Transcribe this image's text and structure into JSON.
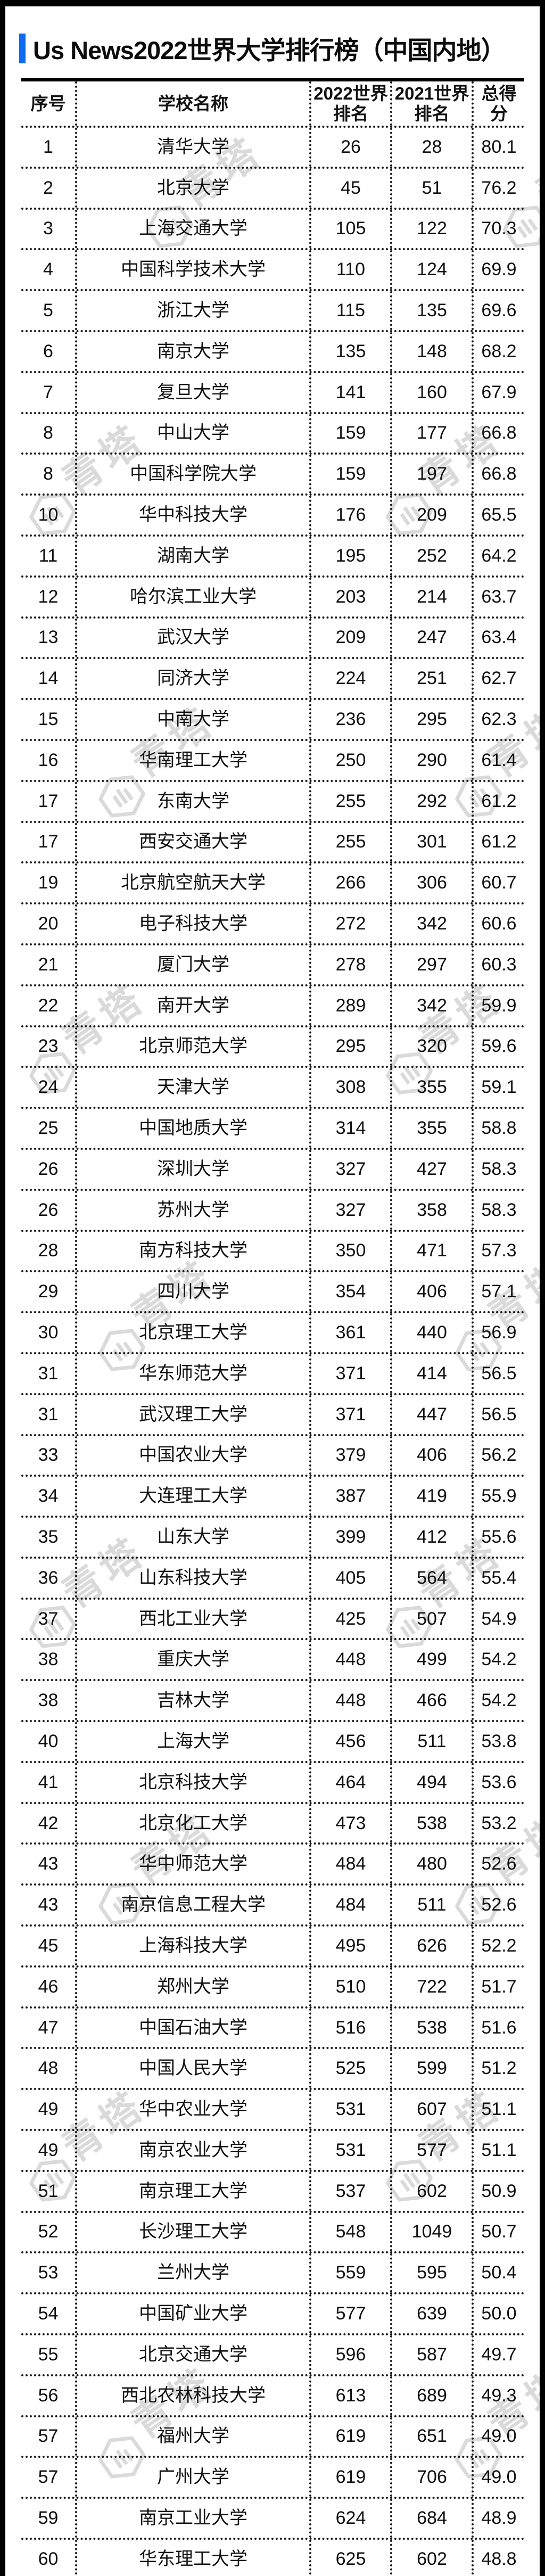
{
  "title": {
    "text": "Us News2022世界大学排行榜（中国内地）",
    "accent_color": "#0d6bf2"
  },
  "watermark": {
    "text": "青塔"
  },
  "table": {
    "columns": [
      "序号",
      "学校名称",
      "2022世界排名",
      "2021世界排名",
      "总得分"
    ],
    "rows": [
      [
        "1",
        "清华大学",
        "26",
        "28",
        "80.1"
      ],
      [
        "2",
        "北京大学",
        "45",
        "51",
        "76.2"
      ],
      [
        "3",
        "上海交通大学",
        "105",
        "122",
        "70.3"
      ],
      [
        "4",
        "中国科学技术大学",
        "110",
        "124",
        "69.9"
      ],
      [
        "5",
        "浙江大学",
        "115",
        "135",
        "69.6"
      ],
      [
        "6",
        "南京大学",
        "135",
        "148",
        "68.2"
      ],
      [
        "7",
        "复旦大学",
        "141",
        "160",
        "67.9"
      ],
      [
        "8",
        "中山大学",
        "159",
        "177",
        "66.8"
      ],
      [
        "8",
        "中国科学院大学",
        "159",
        "197",
        "66.8"
      ],
      [
        "10",
        "华中科技大学",
        "176",
        "209",
        "65.5"
      ],
      [
        "11",
        "湖南大学",
        "195",
        "252",
        "64.2"
      ],
      [
        "12",
        "哈尔滨工业大学",
        "203",
        "214",
        "63.7"
      ],
      [
        "13",
        "武汉大学",
        "209",
        "247",
        "63.4"
      ],
      [
        "14",
        "同济大学",
        "224",
        "251",
        "62.7"
      ],
      [
        "15",
        "中南大学",
        "236",
        "295",
        "62.3"
      ],
      [
        "16",
        "华南理工大学",
        "250",
        "290",
        "61.4"
      ],
      [
        "17",
        "东南大学",
        "255",
        "292",
        "61.2"
      ],
      [
        "17",
        "西安交通大学",
        "255",
        "301",
        "61.2"
      ],
      [
        "19",
        "北京航空航天大学",
        "266",
        "306",
        "60.7"
      ],
      [
        "20",
        "电子科技大学",
        "272",
        "342",
        "60.6"
      ],
      [
        "21",
        "厦门大学",
        "278",
        "297",
        "60.3"
      ],
      [
        "22",
        "南开大学",
        "289",
        "342",
        "59.9"
      ],
      [
        "23",
        "北京师范大学",
        "295",
        "320",
        "59.6"
      ],
      [
        "24",
        "天津大学",
        "308",
        "355",
        "59.1"
      ],
      [
        "25",
        "中国地质大学",
        "314",
        "355",
        "58.8"
      ],
      [
        "26",
        "深圳大学",
        "327",
        "427",
        "58.3"
      ],
      [
        "26",
        "苏州大学",
        "327",
        "358",
        "58.3"
      ],
      [
        "28",
        "南方科技大学",
        "350",
        "471",
        "57.3"
      ],
      [
        "29",
        "四川大学",
        "354",
        "406",
        "57.1"
      ],
      [
        "30",
        "北京理工大学",
        "361",
        "440",
        "56.9"
      ],
      [
        "31",
        "华东师范大学",
        "371",
        "414",
        "56.5"
      ],
      [
        "31",
        "武汉理工大学",
        "371",
        "447",
        "56.5"
      ],
      [
        "33",
        "中国农业大学",
        "379",
        "406",
        "56.2"
      ],
      [
        "34",
        "大连理工大学",
        "387",
        "419",
        "55.9"
      ],
      [
        "35",
        "山东大学",
        "399",
        "412",
        "55.6"
      ],
      [
        "36",
        "山东科技大学",
        "405",
        "564",
        "55.4"
      ],
      [
        "37",
        "西北工业大学",
        "425",
        "507",
        "54.9"
      ],
      [
        "38",
        "重庆大学",
        "448",
        "499",
        "54.2"
      ],
      [
        "38",
        "吉林大学",
        "448",
        "466",
        "54.2"
      ],
      [
        "40",
        "上海大学",
        "456",
        "511",
        "53.8"
      ],
      [
        "41",
        "北京科技大学",
        "464",
        "494",
        "53.6"
      ],
      [
        "42",
        "北京化工大学",
        "473",
        "538",
        "53.2"
      ],
      [
        "43",
        "华中师范大学",
        "484",
        "480",
        "52.6"
      ],
      [
        "43",
        "南京信息工程大学",
        "484",
        "511",
        "52.6"
      ],
      [
        "45",
        "上海科技大学",
        "495",
        "626",
        "52.2"
      ],
      [
        "46",
        "郑州大学",
        "510",
        "722",
        "51.7"
      ],
      [
        "47",
        "中国石油大学",
        "516",
        "538",
        "51.6"
      ],
      [
        "48",
        "中国人民大学",
        "525",
        "599",
        "51.2"
      ],
      [
        "49",
        "华中农业大学",
        "531",
        "607",
        "51.1"
      ],
      [
        "49",
        "南京农业大学",
        "531",
        "577",
        "51.1"
      ],
      [
        "51",
        "南京理工大学",
        "537",
        "602",
        "50.9"
      ],
      [
        "52",
        "长沙理工大学",
        "548",
        "1049",
        "50.7"
      ],
      [
        "53",
        "兰州大学",
        "559",
        "595",
        "50.4"
      ],
      [
        "54",
        "中国矿业大学",
        "577",
        "639",
        "50.0"
      ],
      [
        "55",
        "北京交通大学",
        "596",
        "587",
        "49.7"
      ],
      [
        "56",
        "西北农林科技大学",
        "613",
        "689",
        "49.3"
      ],
      [
        "57",
        "福州大学",
        "619",
        "651",
        "49.0"
      ],
      [
        "57",
        "广州大学",
        "619",
        "706",
        "49.0"
      ],
      [
        "59",
        "南京工业大学",
        "624",
        "684",
        "48.9"
      ],
      [
        "60",
        "华东理工大学",
        "625",
        "602",
        "48.8"
      ]
    ]
  }
}
